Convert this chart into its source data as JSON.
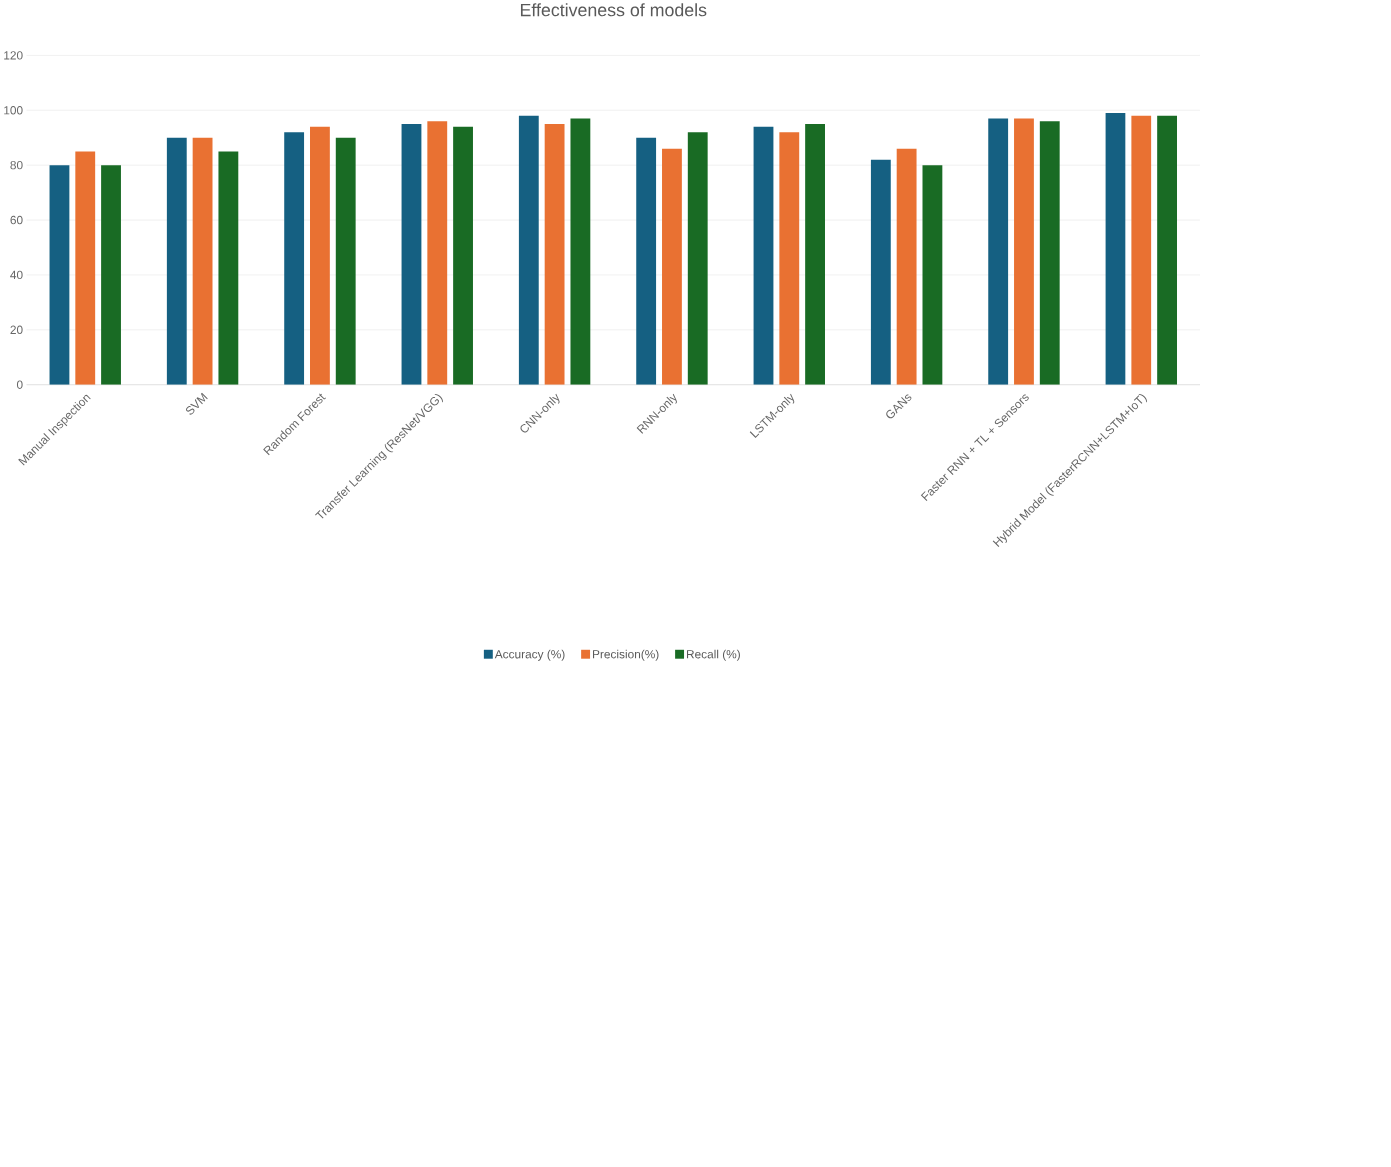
{
  "chart_data": {
    "type": "bar",
    "title": "Effectiveness of models",
    "categories": [
      "Manual Inspection",
      "SVM",
      "Random Forest",
      "Transfer Learning (ResNet/VGG)",
      "CNN-only",
      "RNN-only",
      "LSTM-only",
      "GANs",
      "Faster RNN + TL + Sensors",
      "Hybrid Model (FasterRCNN+LSTM+IoT)"
    ],
    "series": [
      {
        "name": "Accuracy (%)",
        "color": "#156082",
        "values": [
          80,
          90,
          92,
          95,
          98,
          90,
          94,
          82,
          97,
          99
        ]
      },
      {
        "name": "Precision(%)",
        "color": "#e97132",
        "values": [
          85,
          90,
          94,
          96,
          95,
          86,
          92,
          86,
          97,
          98
        ]
      },
      {
        "name": "Recall (%)",
        "color": "#196b24",
        "values": [
          80,
          85,
          90,
          94,
          97,
          92,
          95,
          80,
          96,
          98
        ]
      }
    ],
    "ylim": [
      0,
      120
    ],
    "yticks": [
      0,
      20,
      40,
      60,
      80,
      100,
      120
    ],
    "grid": "y",
    "legend": "bottom"
  }
}
